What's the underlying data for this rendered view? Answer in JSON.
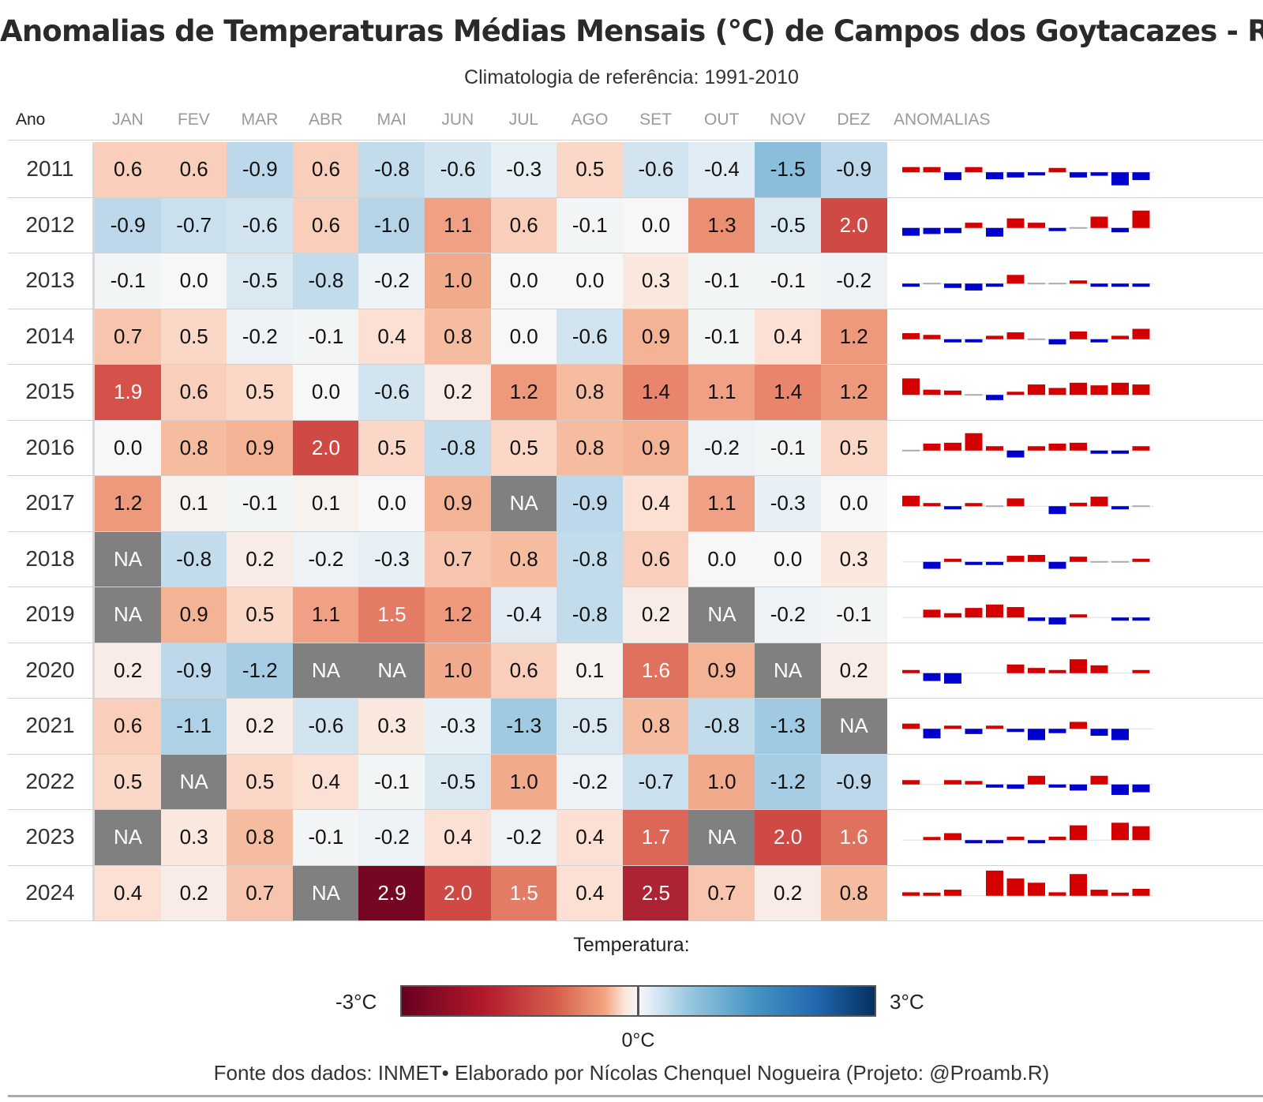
{
  "title": "Anomalias de Temperaturas Médias Mensais (°C) de Campos dos Goytacazes - RJ",
  "subtitle": "Climatologia de referência: 1991-2010",
  "caption": "Fonte dos dados: INMET• Elaborado por Nícolas Chenquel Nogueira (Projeto: @Proamb.R)",
  "legend": {
    "title": "Temperatura:",
    "min_label": "-3°C",
    "max_label": "3°C",
    "zero_label": "0°C"
  },
  "colors": {
    "positive_bar": "#d40000",
    "negative_bar": "#0000cc",
    "zero_line": "#aaaaaa",
    "na_cell": "#808080"
  },
  "chart_data": {
    "type": "heatmap",
    "title": "Anomalias de Temperaturas Médias Mensais (°C) de Campos dos Goytacazes - RJ",
    "subtitle": "Climatologia de referência: 1991-2010",
    "year_header": "Ano",
    "spark_header": "ANOMALIAS",
    "columns": [
      "JAN",
      "FEV",
      "MAR",
      "ABR",
      "MAI",
      "JUN",
      "JUL",
      "AGO",
      "SET",
      "OUT",
      "NOV",
      "DEZ"
    ],
    "color_range": [
      -3,
      3
    ],
    "na_label": "NA",
    "rows": [
      {
        "year": "2011",
        "values": [
          0.6,
          0.6,
          -0.9,
          0.6,
          -0.8,
          -0.6,
          -0.3,
          0.5,
          -0.6,
          -0.4,
          -1.5,
          -0.9
        ]
      },
      {
        "year": "2012",
        "values": [
          -0.9,
          -0.7,
          -0.6,
          0.6,
          -1.0,
          1.1,
          0.6,
          -0.1,
          0.0,
          1.3,
          -0.5,
          2.0
        ]
      },
      {
        "year": "2013",
        "values": [
          -0.1,
          0.0,
          -0.5,
          -0.8,
          -0.2,
          1.0,
          0.0,
          0.0,
          0.3,
          -0.1,
          -0.1,
          -0.2
        ]
      },
      {
        "year": "2014",
        "values": [
          0.7,
          0.5,
          -0.2,
          -0.1,
          0.4,
          0.8,
          0.0,
          -0.6,
          0.9,
          -0.1,
          0.4,
          1.2
        ]
      },
      {
        "year": "2015",
        "values": [
          1.9,
          0.6,
          0.5,
          0.0,
          -0.6,
          0.2,
          1.2,
          0.8,
          1.4,
          1.1,
          1.4,
          1.2
        ]
      },
      {
        "year": "2016",
        "values": [
          0.0,
          0.8,
          0.9,
          2.0,
          0.5,
          -0.8,
          0.5,
          0.8,
          0.9,
          -0.2,
          -0.1,
          0.5
        ]
      },
      {
        "year": "2017",
        "values": [
          1.2,
          0.1,
          -0.1,
          0.1,
          0.0,
          0.9,
          null,
          -0.9,
          0.4,
          1.1,
          -0.3,
          0.0
        ]
      },
      {
        "year": "2018",
        "values": [
          null,
          -0.8,
          0.2,
          -0.2,
          -0.3,
          0.7,
          0.8,
          -0.8,
          0.6,
          0.0,
          0.0,
          0.3
        ]
      },
      {
        "year": "2019",
        "values": [
          null,
          0.9,
          0.5,
          1.1,
          1.5,
          1.2,
          -0.4,
          -0.8,
          0.2,
          null,
          -0.2,
          -0.1
        ]
      },
      {
        "year": "2020",
        "values": [
          0.2,
          -0.9,
          -1.2,
          null,
          null,
          1.0,
          0.6,
          0.1,
          1.6,
          0.9,
          null,
          0.2
        ]
      },
      {
        "year": "2021",
        "values": [
          0.6,
          -1.1,
          0.2,
          -0.6,
          0.3,
          -0.3,
          -1.3,
          -0.5,
          0.8,
          -0.8,
          -1.3,
          null
        ]
      },
      {
        "year": "2022",
        "values": [
          0.5,
          null,
          0.5,
          0.4,
          -0.1,
          -0.5,
          1.0,
          -0.2,
          -0.7,
          1.0,
          -1.2,
          -0.9
        ]
      },
      {
        "year": "2023",
        "values": [
          null,
          0.3,
          0.8,
          -0.1,
          -0.2,
          0.4,
          -0.2,
          0.4,
          1.7,
          null,
          2.0,
          1.6
        ]
      },
      {
        "year": "2024",
        "values": [
          0.4,
          0.2,
          0.7,
          null,
          2.9,
          2.0,
          1.5,
          0.4,
          2.5,
          0.7,
          0.2,
          0.8
        ]
      }
    ]
  }
}
